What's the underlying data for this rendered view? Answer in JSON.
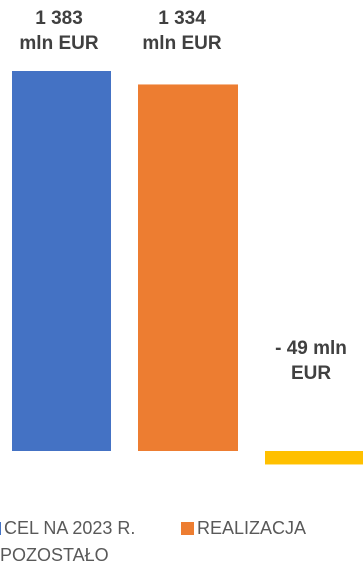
{
  "chart_data": {
    "type": "bar",
    "categories": [
      "CEL NA 2023 R.",
      "REALIZACJA",
      "POZOSTAŁO"
    ],
    "values": [
      1383,
      1334,
      -49
    ],
    "unit": "mln EUR",
    "data_labels": [
      [
        "1 383",
        "mln EUR"
      ],
      [
        "1 334",
        "mln EUR"
      ],
      [
        "- 49 mln",
        "EUR"
      ]
    ],
    "colors": [
      "#4472C4",
      "#ED7D31",
      "#FFC000"
    ],
    "legend": {
      "position": "bottom",
      "entries": [
        {
          "label": "CEL NA 2023 R.",
          "color": "#4472C4"
        },
        {
          "label": "REALIZACJA",
          "color": "#ED7D31"
        },
        {
          "label": "POZOSTAŁO",
          "color": "#FFC000"
        }
      ]
    },
    "grid": false
  }
}
